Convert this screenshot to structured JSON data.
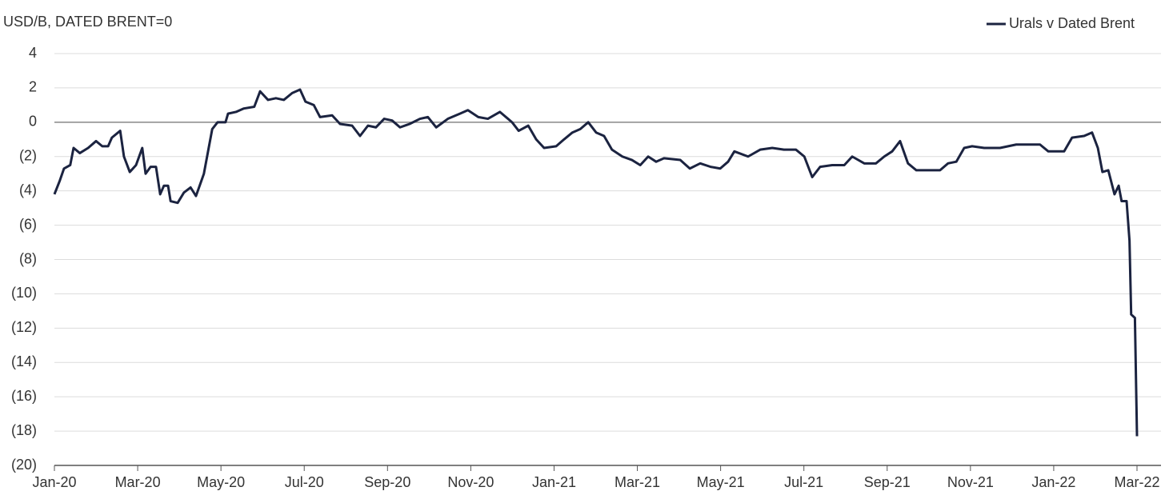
{
  "chart_data": {
    "type": "line",
    "y_label": "USD/B, DATED BRENT=0",
    "x": [
      0,
      0.13,
      0.23,
      0.38,
      0.46,
      0.61,
      0.81,
      1.0,
      1.15,
      1.29,
      1.38,
      1.58,
      1.67,
      1.81,
      1.96,
      2.11,
      2.19,
      2.31,
      2.44,
      2.54,
      2.63,
      2.73,
      2.79,
      2.96,
      3.11,
      3.27,
      3.4,
      3.59,
      3.69,
      3.79,
      3.92,
      4.11,
      4.17,
      4.36,
      4.55,
      4.8,
      4.94,
      5.13,
      5.32,
      5.51,
      5.71,
      5.9,
      6.03,
      6.23,
      6.38,
      6.67,
      6.86,
      7.15,
      7.34,
      7.53,
      7.72,
      7.92,
      8.11,
      8.3,
      8.53,
      8.78,
      8.97,
      9.17,
      9.45,
      9.74,
      9.93,
      10.18,
      10.41,
      10.7,
      10.99,
      11.15,
      11.38,
      11.57,
      11.76,
      12.05,
      12.24,
      12.44,
      12.63,
      12.82,
      13.01,
      13.2,
      13.39,
      13.64,
      13.87,
      14.07,
      14.26,
      14.45,
      14.64,
      15.03,
      15.26,
      15.51,
      15.76,
      15.99,
      16.18,
      16.33,
      16.66,
      16.95,
      17.24,
      17.52,
      17.81,
      18.01,
      18.2,
      18.39,
      18.68,
      18.97,
      19.16,
      19.45,
      19.73,
      19.93,
      20.12,
      20.31,
      20.5,
      20.7,
      21.27,
      21.46,
      21.66,
      21.85,
      22.04,
      22.33,
      22.71,
      23.1,
      23.67,
      23.87,
      24.25,
      24.44,
      24.73,
      24.92,
      25.06,
      25.17,
      25.31,
      25.46,
      25.56,
      25.63,
      25.75,
      25.82,
      25.86,
      25.95,
      26
    ],
    "series": [
      {
        "name": "Urals v Dated Brent",
        "color": "#1b2340",
        "values": [
          -4.2,
          -3.4,
          -2.7,
          -2.5,
          -1.5,
          -1.8,
          -1.5,
          -1.1,
          -1.4,
          -1.4,
          -0.9,
          -0.5,
          -2.0,
          -2.9,
          -2.5,
          -1.5,
          -3.0,
          -2.6,
          -2.6,
          -4.2,
          -3.7,
          -3.7,
          -4.6,
          -4.7,
          -4.1,
          -3.8,
          -4.3,
          -3.0,
          -1.7,
          -0.4,
          0,
          0,
          0.5,
          0.6,
          0.8,
          0.9,
          1.8,
          1.3,
          1.4,
          1.3,
          1.7,
          1.9,
          1.2,
          1.0,
          0.3,
          0.4,
          -0.1,
          -0.2,
          -0.8,
          -0.2,
          -0.3,
          0.2,
          0.1,
          -0.3,
          -0.1,
          0.2,
          0.3,
          -0.3,
          0.2,
          0.5,
          0.7,
          0.3,
          0.2,
          0.6,
          0,
          -0.5,
          -0.2,
          -1.0,
          -1.5,
          -1.4,
          -1.0,
          -0.6,
          -0.4,
          0,
          -0.6,
          -0.8,
          -1.6,
          -2.0,
          -2.2,
          -2.5,
          -2.0,
          -2.3,
          -2.1,
          -2.2,
          -2.7,
          -2.4,
          -2.6,
          -2.7,
          -2.3,
          -1.7,
          -2.0,
          -1.6,
          -1.5,
          -1.6,
          -1.6,
          -2.0,
          -3.2,
          -2.6,
          -2.5,
          -2.5,
          -2.0,
          -2.4,
          -2.4,
          -2.0,
          -1.7,
          -1.1,
          -2.4,
          -2.8,
          -2.8,
          -2.4,
          -2.3,
          -1.5,
          -1.4,
          -1.5,
          -1.5,
          -1.3,
          -1.3,
          -1.7,
          -1.7,
          -0.9,
          -0.8,
          -0.6,
          -1.5,
          -2.9,
          -2.8,
          -4.2,
          -3.7,
          -4.6,
          -4.6,
          -6.9,
          -11.2,
          -11.4,
          -18.3
        ]
      }
    ],
    "xlim": [
      0,
      26
    ],
    "xticks": [
      {
        "value": 0,
        "label": "Jan-20"
      },
      {
        "value": 2,
        "label": "Mar-20"
      },
      {
        "value": 4,
        "label": "May-20"
      },
      {
        "value": 6,
        "label": "Jul-20"
      },
      {
        "value": 8,
        "label": "Sep-20"
      },
      {
        "value": 10,
        "label": "Nov-20"
      },
      {
        "value": 12,
        "label": "Jan-21"
      },
      {
        "value": 14,
        "label": "Mar-21"
      },
      {
        "value": 16,
        "label": "May-21"
      },
      {
        "value": 18,
        "label": "Jul-21"
      },
      {
        "value": 20,
        "label": "Sep-21"
      },
      {
        "value": 22,
        "label": "Nov-21"
      },
      {
        "value": 24,
        "label": "Jan-22"
      },
      {
        "value": 26,
        "label": "Mar-22"
      }
    ],
    "ylim": [
      -20,
      4
    ],
    "yticks": [
      4,
      2,
      0,
      {
        "value": -2,
        "label": "(2)"
      },
      {
        "value": -4,
        "label": "(4)"
      },
      {
        "value": -6,
        "label": "(6)"
      },
      {
        "value": -8,
        "label": "(8)"
      },
      {
        "value": -10,
        "label": "(10)"
      },
      {
        "value": -12,
        "label": "(12)"
      },
      {
        "value": -14,
        "label": "(14)"
      },
      {
        "value": -16,
        "label": "(16)"
      },
      {
        "value": -18,
        "label": "(18)"
      },
      {
        "value": -20,
        "label": "(20)"
      }
    ],
    "grid": true,
    "legend": "upper right"
  }
}
